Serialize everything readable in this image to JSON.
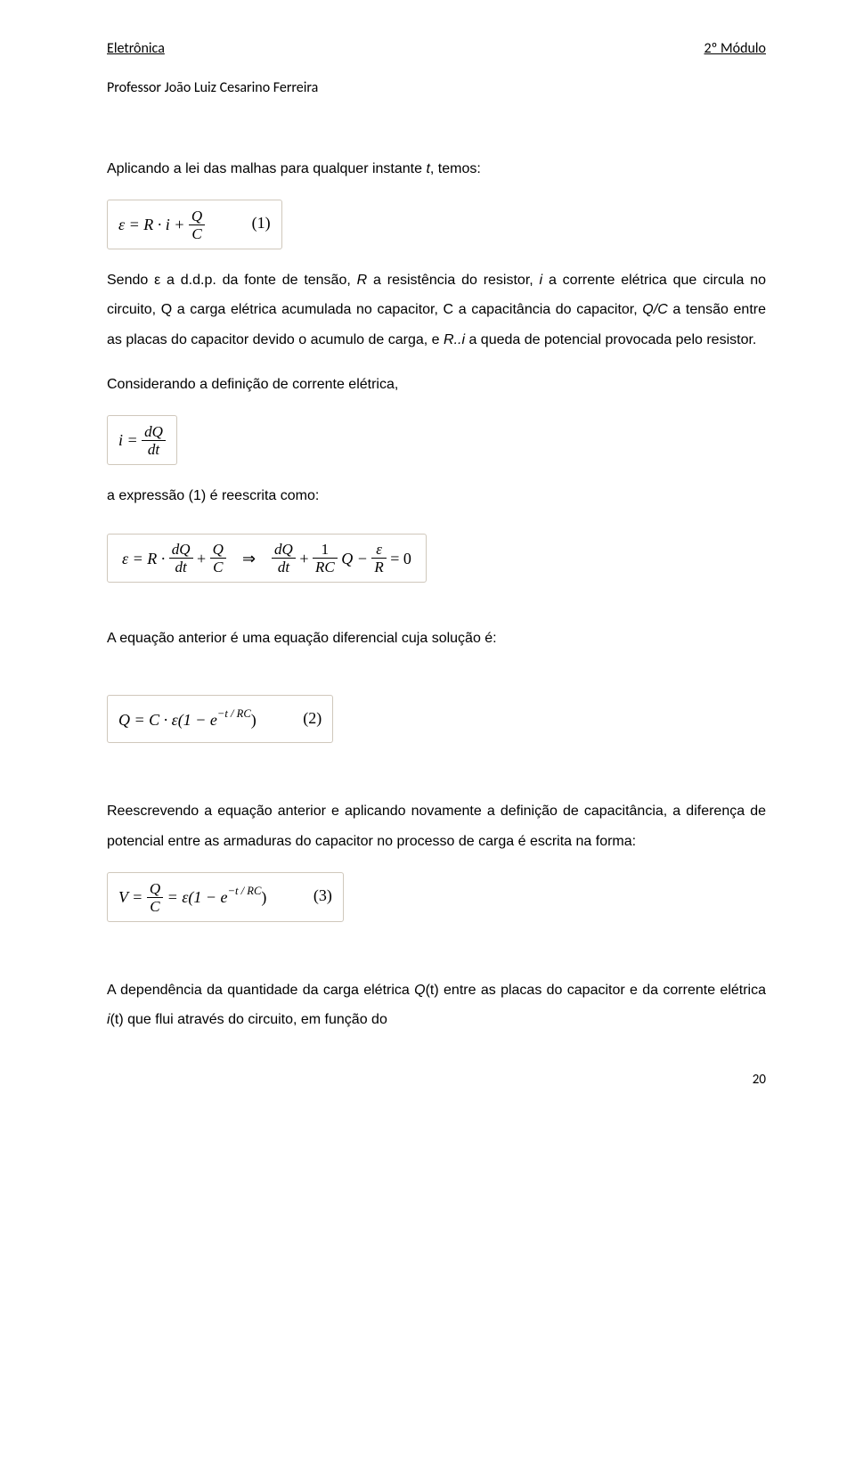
{
  "header": {
    "left": "Eletrônica",
    "right": "2º Módulo",
    "professor": "Professor João Luiz Cesarino Ferreira"
  },
  "para1": "Aplicando a lei das malhas para qualquer instante ",
  "para1_t": "t",
  "para1_tail": ", temos:",
  "eq1": {
    "lhs": "ε = R · i + ",
    "frac_num": "Q",
    "frac_den": "C",
    "num": "(1)"
  },
  "para2a": "Sendo ε a d.d.p. da fonte de tensão, ",
  "para2_R": "R",
  "para2b": " a resistência do resistor, ",
  "para2_i": "i",
  "para2c": " a corrente elétrica que circula no circuito, Q a carga elétrica acumulada no capacitor, C a capacitância do capacitor, ",
  "para2_QC": "Q/C",
  "para2d": " a tensão entre as placas do capacitor devido o acumulo de carga, e ",
  "para2_Ri": "R..i",
  "para2e": " a queda de potencial provocada pelo resistor.",
  "para3": "Considerando a definição de corrente elétrica,",
  "eq2": {
    "lhs": "i = ",
    "frac_num": "dQ",
    "frac_den": "dt"
  },
  "para4": "a expressão (1) é reescrita como:",
  "eq3": {
    "part1_pre": "ε = R · ",
    "part1_f1n": "dQ",
    "part1_f1d": "dt",
    "part1_mid": " + ",
    "part1_f2n": "Q",
    "part1_f2d": "C",
    "arrow": "   ⇒   ",
    "part2_f1n": "dQ",
    "part2_f1d": "dt",
    "part2_mid1": " + ",
    "part2_f2n": "1",
    "part2_f2d": "RC",
    "part2_mid2": "Q − ",
    "part2_f3n": "ε",
    "part2_f3d": "R",
    "part2_tail": " = 0"
  },
  "para5": "A equação anterior é uma equação diferencial cuja solução é:",
  "eq4": {
    "text": "Q = C · ε(1 − e",
    "exp": "−t / RC",
    "tail": ")",
    "num": "(2)"
  },
  "para6": "Reescrevendo a equação anterior e aplicando novamente a definição de capacitância, a diferença de potencial entre as armaduras do capacitor no processo de carga é escrita na forma:",
  "eq5": {
    "lhs": "V = ",
    "frac_num": "Q",
    "frac_den": "C",
    "mid": " = ε(1 − e",
    "exp": "−t / RC",
    "tail": ")",
    "num": "(3)"
  },
  "para7a": "A dependência da quantidade da carga elétrica ",
  "para7_Q": "Q",
  "para7_Qarg": "(t)",
  "para7b": " entre as placas do capacitor e da corrente elétrica ",
  "para7_i": "i",
  "para7_iarg": "(t)",
  "para7c": " que flui através do circuito, em função do",
  "pagenum": "20"
}
